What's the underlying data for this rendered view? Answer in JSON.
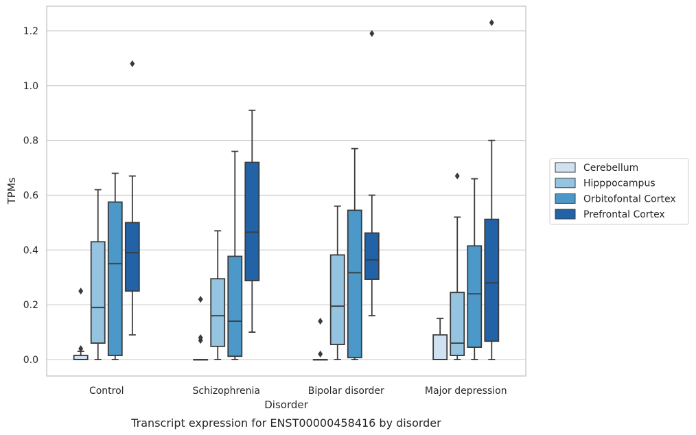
{
  "chart_data": {
    "type": "boxplot",
    "xlabel": "Disorder",
    "ylabel": "TPMs",
    "caption": "Transcript expression for ENST00000458416 by disorder",
    "categories": [
      "Control",
      "Schizophrenia",
      "Bipolar disorder",
      "Major depression"
    ],
    "ylim": [
      -0.06,
      1.29
    ],
    "yticks": [
      0.0,
      0.2,
      0.4,
      0.6,
      0.8,
      1.0,
      1.2
    ],
    "ytick_labels": [
      "0.0",
      "0.2",
      "0.4",
      "0.6",
      "0.8",
      "1.0",
      "1.2"
    ],
    "grid": "horizontal",
    "legend_position": "right",
    "series": [
      {
        "name": "Cerebellum",
        "color": "#d0e1f2",
        "boxes": [
          {
            "whislo": 0.0,
            "q1": 0.0,
            "med": 0.0,
            "q3": 0.015,
            "whishi": 0.03,
            "fliers": [
              0.04,
              0.25
            ]
          },
          {
            "whislo": 0.0,
            "q1": 0.0,
            "med": 0.0,
            "q3": 0.0,
            "whishi": 0.0,
            "fliers": [
              0.07,
              0.08,
              0.22
            ]
          },
          {
            "whislo": 0.0,
            "q1": 0.0,
            "med": 0.0,
            "q3": 0.0,
            "whishi": 0.0,
            "fliers": [
              0.02,
              0.14
            ]
          },
          {
            "whislo": 0.0,
            "q1": 0.0,
            "med": 0.0,
            "q3": 0.09,
            "whishi": 0.15,
            "fliers": []
          }
        ]
      },
      {
        "name": "Hipppocampus",
        "color": "#94c4df",
        "boxes": [
          {
            "whislo": 0.0,
            "q1": 0.06,
            "med": 0.19,
            "q3": 0.43,
            "whishi": 0.62,
            "fliers": []
          },
          {
            "whislo": 0.0,
            "q1": 0.048,
            "med": 0.16,
            "q3": 0.295,
            "whishi": 0.47,
            "fliers": []
          },
          {
            "whislo": 0.0,
            "q1": 0.055,
            "med": 0.195,
            "q3": 0.382,
            "whishi": 0.56,
            "fliers": []
          },
          {
            "whislo": 0.0,
            "q1": 0.015,
            "med": 0.06,
            "q3": 0.245,
            "whishi": 0.52,
            "fliers": [
              0.67
            ]
          }
        ]
      },
      {
        "name": "Orbitofontal Cortex",
        "color": "#4b98c9",
        "boxes": [
          {
            "whislo": 0.0,
            "q1": 0.015,
            "med": 0.35,
            "q3": 0.575,
            "whishi": 0.68,
            "fliers": []
          },
          {
            "whislo": 0.0,
            "q1": 0.012,
            "med": 0.14,
            "q3": 0.377,
            "whishi": 0.76,
            "fliers": []
          },
          {
            "whislo": 0.0,
            "q1": 0.007,
            "med": 0.317,
            "q3": 0.545,
            "whishi": 0.77,
            "fliers": []
          },
          {
            "whislo": 0.0,
            "q1": 0.045,
            "med": 0.24,
            "q3": 0.415,
            "whishi": 0.66,
            "fliers": []
          }
        ]
      },
      {
        "name": "Prefrontal Cortex",
        "color": "#2262a7",
        "boxes": [
          {
            "whislo": 0.09,
            "q1": 0.25,
            "med": 0.39,
            "q3": 0.5,
            "whishi": 0.67,
            "fliers": [
              1.08
            ]
          },
          {
            "whislo": 0.1,
            "q1": 0.288,
            "med": 0.465,
            "q3": 0.72,
            "whishi": 0.91,
            "fliers": []
          },
          {
            "whislo": 0.16,
            "q1": 0.293,
            "med": 0.364,
            "q3": 0.462,
            "whishi": 0.6,
            "fliers": [
              1.19
            ]
          },
          {
            "whislo": 0.0,
            "q1": 0.067,
            "med": 0.28,
            "q3": 0.512,
            "whishi": 0.8,
            "fliers": [
              1.23
            ]
          }
        ]
      }
    ]
  }
}
